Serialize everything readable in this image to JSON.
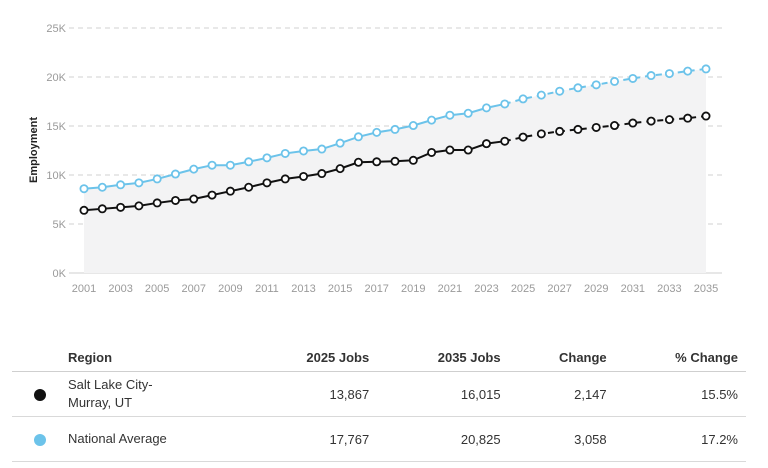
{
  "chart_data": {
    "type": "line",
    "ylabel": "Employment",
    "xlabel": "",
    "ylim": [
      0,
      25000
    ],
    "yticks": [
      "0K",
      "5K",
      "10K",
      "15K",
      "20K",
      "25K"
    ],
    "ytick_values": [
      0,
      5000,
      10000,
      15000,
      20000,
      25000
    ],
    "x": [
      2001,
      2002,
      2003,
      2004,
      2005,
      2006,
      2007,
      2008,
      2009,
      2010,
      2011,
      2012,
      2013,
      2014,
      2015,
      2016,
      2017,
      2018,
      2019,
      2020,
      2021,
      2022,
      2023,
      2024,
      2025,
      2026,
      2027,
      2028,
      2029,
      2030,
      2031,
      2032,
      2033,
      2034,
      2035
    ],
    "xticks": [
      2001,
      2003,
      2005,
      2007,
      2009,
      2011,
      2013,
      2015,
      2017,
      2019,
      2021,
      2023,
      2025,
      2027,
      2029,
      2031,
      2033,
      2035
    ],
    "projection_start": 2024,
    "grid": true,
    "series": [
      {
        "name": "Salt Lake City-Murray, UT",
        "color": "#111111",
        "values": [
          6400,
          6550,
          6700,
          6850,
          7150,
          7400,
          7550,
          7950,
          8350,
          8750,
          9200,
          9600,
          9850,
          10150,
          10650,
          11300,
          11350,
          11400,
          11500,
          12300,
          12550,
          12550,
          13200,
          13450,
          13867,
          14200,
          14450,
          14650,
          14850,
          15050,
          15300,
          15500,
          15650,
          15800,
          16015
        ]
      },
      {
        "name": "National Average",
        "color": "#6cc3ea",
        "values": [
          8600,
          8750,
          9000,
          9200,
          9600,
          10100,
          10600,
          11000,
          11000,
          11350,
          11750,
          12200,
          12450,
          12650,
          13250,
          13900,
          14350,
          14650,
          15050,
          15600,
          16100,
          16300,
          16850,
          17250,
          17767,
          18150,
          18550,
          18900,
          19200,
          19550,
          19850,
          20150,
          20350,
          20600,
          20825
        ]
      }
    ],
    "background_area_series": 1
  },
  "table": {
    "headers": [
      "Region",
      "2025 Jobs",
      "2035 Jobs",
      "Change",
      "% Change"
    ],
    "rows": [
      {
        "region": "Salt Lake City-Murray, UT",
        "region_line1": "Salt Lake City-",
        "region_line2": "Murray, UT",
        "jobs_2025": "13,867",
        "jobs_2035": "16,015",
        "change": "2,147",
        "pct_change": "15.5%",
        "dot_color": "#111111"
      },
      {
        "region": "National Average",
        "region_line1": "National Average",
        "region_line2": "",
        "jobs_2025": "17,767",
        "jobs_2035": "20,825",
        "change": "3,058",
        "pct_change": "17.2%",
        "dot_color": "#6cc3ea"
      }
    ]
  }
}
